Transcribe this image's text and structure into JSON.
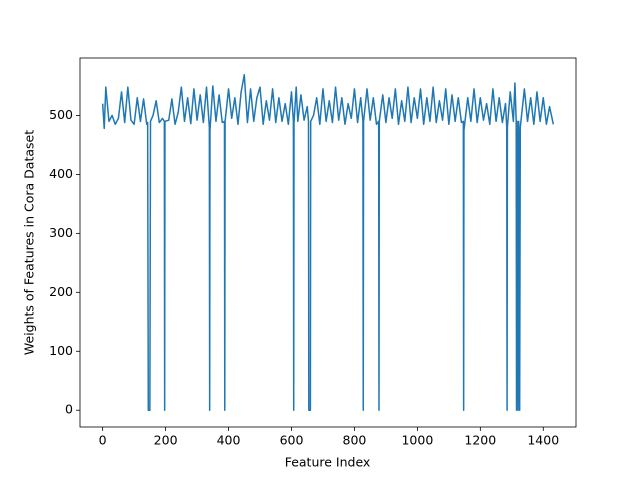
{
  "chart_data": {
    "type": "line",
    "xlabel": "Feature Index",
    "ylabel": "Weights of Features in Cora Dataset",
    "color": "#1f77b4",
    "x": [
      0,
      5,
      10,
      20,
      30,
      40,
      50,
      60,
      70,
      80,
      90,
      100,
      110,
      120,
      130,
      140,
      143,
      145,
      150,
      152,
      160,
      170,
      180,
      190,
      196,
      197,
      198,
      210,
      220,
      230,
      240,
      250,
      260,
      270,
      280,
      290,
      300,
      310,
      320,
      330,
      339,
      340,
      341,
      350,
      360,
      370,
      380,
      387,
      388,
      389,
      400,
      410,
      420,
      430,
      440,
      450,
      460,
      470,
      480,
      490,
      500,
      510,
      520,
      530,
      540,
      550,
      560,
      570,
      580,
      590,
      600,
      606,
      607,
      608,
      615,
      620,
      630,
      640,
      650,
      654,
      655,
      660,
      661,
      670,
      680,
      690,
      700,
      710,
      720,
      730,
      740,
      750,
      760,
      770,
      780,
      790,
      800,
      810,
      820,
      827,
      828,
      829,
      840,
      850,
      860,
      870,
      877,
      878,
      879,
      890,
      900,
      910,
      920,
      930,
      940,
      950,
      960,
      970,
      980,
      990,
      1000,
      1010,
      1020,
      1030,
      1040,
      1050,
      1060,
      1070,
      1080,
      1090,
      1100,
      1110,
      1120,
      1130,
      1140,
      1146,
      1147,
      1148,
      1160,
      1170,
      1180,
      1190,
      1200,
      1210,
      1220,
      1230,
      1240,
      1250,
      1260,
      1270,
      1280,
      1284,
      1285,
      1286,
      1295,
      1305,
      1310,
      1314,
      1315,
      1317,
      1320,
      1322,
      1325,
      1327,
      1340,
      1350,
      1360,
      1370,
      1380,
      1390,
      1400,
      1410,
      1420,
      1432
    ],
    "values": [
      520,
      478,
      548,
      490,
      500,
      485,
      495,
      540,
      488,
      548,
      492,
      485,
      530,
      490,
      528,
      485,
      488,
      0,
      0,
      490,
      500,
      525,
      488,
      495,
      490,
      0,
      490,
      492,
      528,
      485,
      505,
      548,
      490,
      530,
      486,
      545,
      492,
      535,
      488,
      548,
      480,
      0,
      475,
      550,
      490,
      535,
      488,
      490,
      0,
      490,
      545,
      495,
      530,
      485,
      540,
      569,
      488,
      545,
      490,
      530,
      548,
      485,
      525,
      492,
      545,
      488,
      530,
      490,
      520,
      485,
      540,
      490,
      0,
      488,
      548,
      490,
      535,
      492,
      515,
      490,
      0,
      0,
      490,
      500,
      530,
      485,
      545,
      490,
      525,
      488,
      548,
      492,
      530,
      485,
      520,
      495,
      545,
      488,
      530,
      490,
      0,
      490,
      545,
      492,
      530,
      485,
      490,
      0,
      490,
      535,
      488,
      530,
      495,
      545,
      485,
      525,
      490,
      548,
      488,
      530,
      495,
      545,
      485,
      530,
      490,
      548,
      488,
      525,
      492,
      545,
      485,
      535,
      490,
      530,
      488,
      490,
      0,
      475,
      530,
      490,
      545,
      488,
      530,
      492,
      520,
      485,
      545,
      490,
      530,
      488,
      520,
      480,
      0,
      480,
      540,
      490,
      555,
      490,
      0,
      490,
      0,
      490,
      0,
      480,
      545,
      490,
      530,
      485,
      540,
      490,
      530,
      485,
      515,
      485
    ],
    "xlim": [
      -72,
      1504
    ],
    "ylim": [
      -28.45,
      597.45
    ],
    "xticks": [
      0,
      200,
      400,
      600,
      800,
      1000,
      1200,
      1400
    ],
    "yticks": [
      0,
      100,
      200,
      300,
      400,
      500
    ]
  }
}
